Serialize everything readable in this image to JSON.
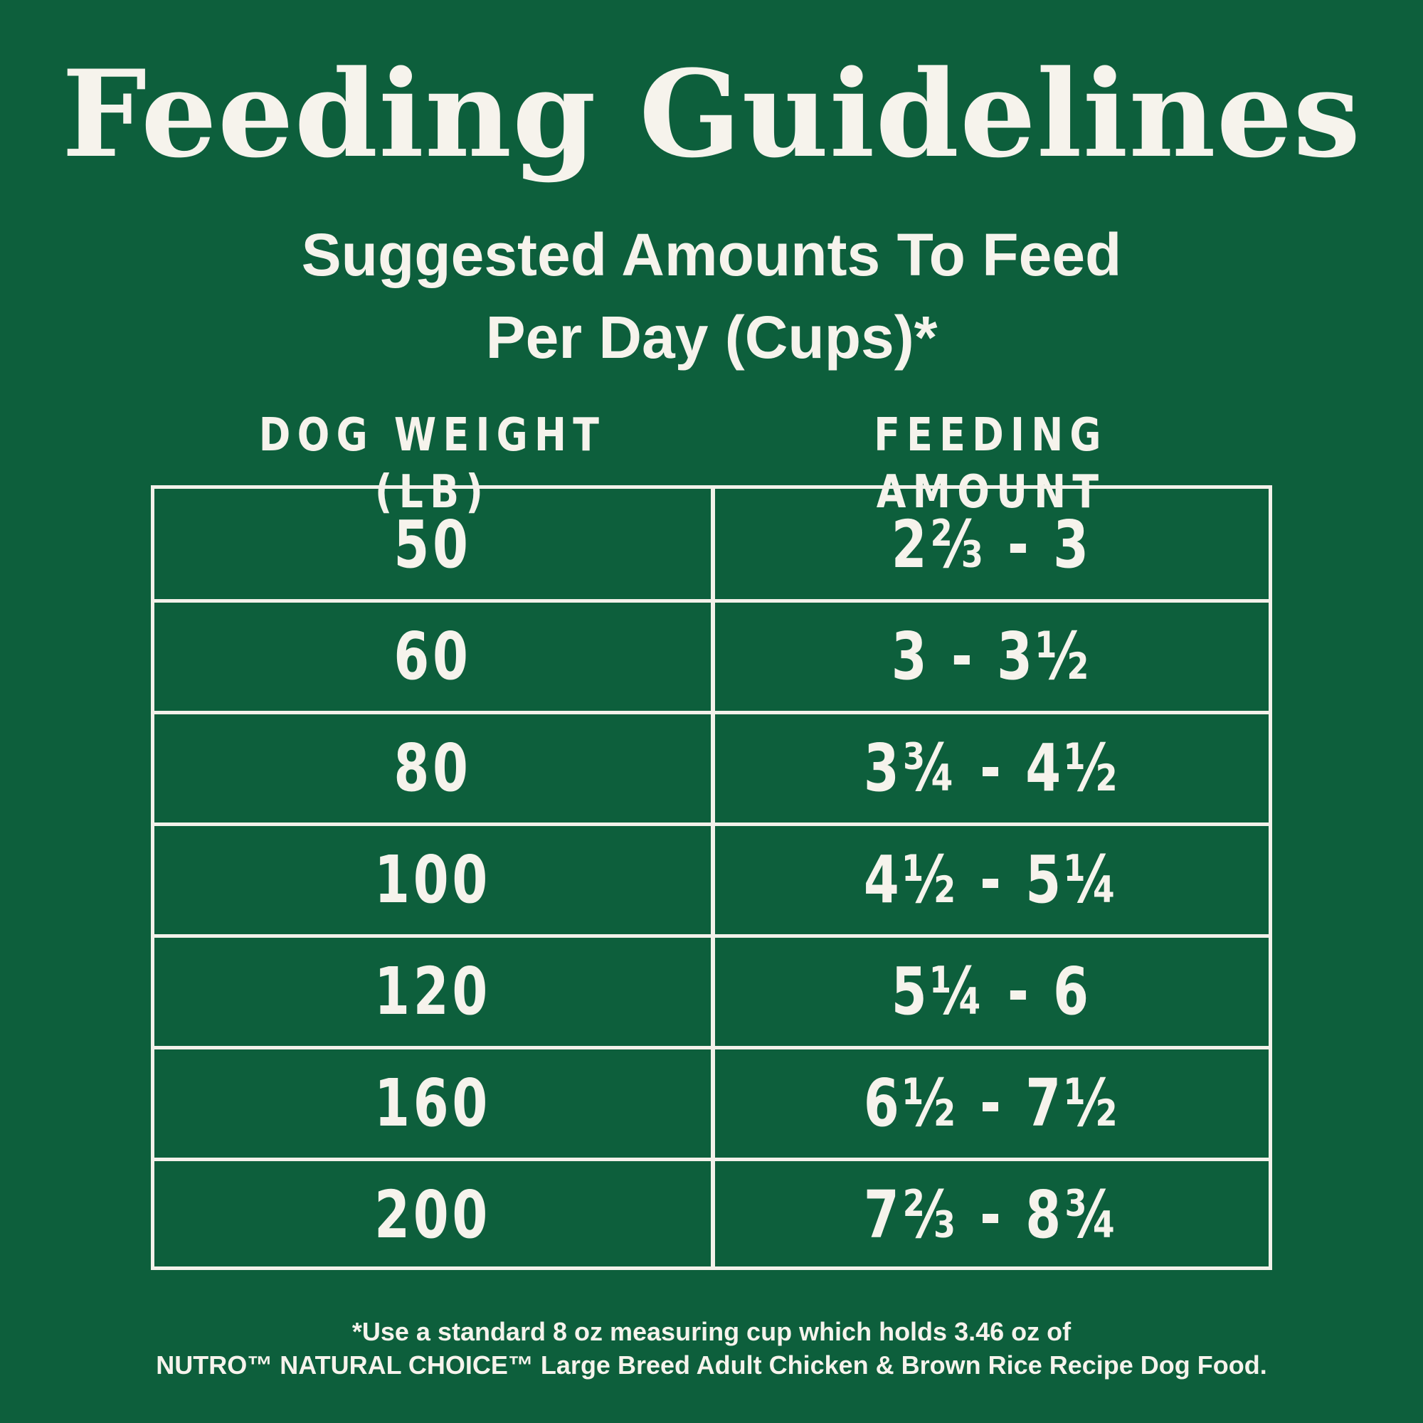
{
  "title": "Feeding Guidelines",
  "subtitle": {
    "line1": "Suggested Amounts To Feed",
    "line2": "Per Day (Cups)*"
  },
  "table": {
    "headers": {
      "weight": "DOG WEIGHT (LB)",
      "amount": "FEEDING AMOUNT"
    },
    "rows": [
      {
        "weight": "50",
        "amount": "2⅔ - 3"
      },
      {
        "weight": "60",
        "amount": "3 - 3½"
      },
      {
        "weight": "80",
        "amount": "3¾ - 4½"
      },
      {
        "weight": "100",
        "amount": "4½ - 5¼"
      },
      {
        "weight": "120",
        "amount": "5¼ - 6"
      },
      {
        "weight": "160",
        "amount": "6½ - 7½"
      },
      {
        "weight": "200",
        "amount": "7⅔ - 8¾"
      }
    ]
  },
  "footnote": {
    "line1": "*Use a standard 8 oz measuring cup which holds 3.46 oz of",
    "line2": "NUTRO™ NATURAL CHOICE™ Large Breed Adult Chicken & Brown Rice Recipe Dog Food."
  },
  "colors": {
    "background": "#0d5f3c",
    "text": "#f6f3ec"
  }
}
